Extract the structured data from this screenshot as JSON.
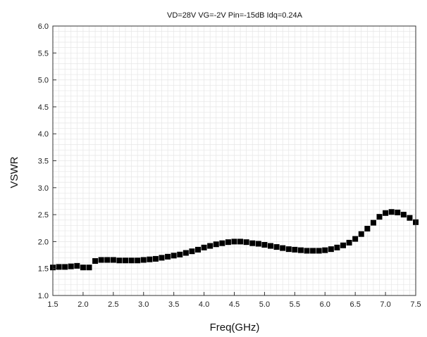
{
  "chart_data": {
    "type": "scatter",
    "title": "VD=28V  VG=-2V  Pin=-15dB  Idq=0.24A",
    "xlabel": "Freq(GHz)",
    "ylabel": "VSWR",
    "xlim": [
      1.5,
      7.5
    ],
    "ylim": [
      1.0,
      6.0
    ],
    "xticks": [
      "1.5",
      "2.0",
      "2.5",
      "3.0",
      "3.5",
      "4.0",
      "4.5",
      "5.0",
      "5.5",
      "6.0",
      "6.5",
      "7.0",
      "7.5"
    ],
    "yticks": [
      "1.0",
      "1.5",
      "2.0",
      "2.5",
      "3.0",
      "3.5",
      "4.0",
      "4.5",
      "5.0",
      "5.5",
      "6.0"
    ],
    "grid": true,
    "marker_color": "#000000",
    "series": [
      {
        "x": [
          1.5,
          1.6,
          1.7,
          1.8,
          1.9,
          2.0,
          2.1,
          2.2,
          2.3,
          2.4,
          2.5,
          2.6,
          2.7,
          2.8,
          2.9,
          3.0,
          3.1,
          3.2,
          3.3,
          3.4,
          3.5,
          3.6,
          3.7,
          3.8,
          3.9,
          4.0,
          4.1,
          4.2,
          4.3,
          4.4,
          4.5,
          4.6,
          4.7,
          4.8,
          4.9,
          5.0,
          5.1,
          5.2,
          5.3,
          5.4,
          5.5,
          5.6,
          5.7,
          5.8,
          5.9,
          6.0,
          6.1,
          6.2,
          6.3,
          6.4,
          6.5,
          6.6,
          6.7,
          6.8,
          6.9,
          7.0,
          7.1,
          7.2,
          7.3,
          7.4,
          7.5
        ],
        "y": [
          1.52,
          1.53,
          1.53,
          1.54,
          1.55,
          1.52,
          1.52,
          1.64,
          1.66,
          1.66,
          1.66,
          1.65,
          1.65,
          1.65,
          1.65,
          1.66,
          1.67,
          1.68,
          1.7,
          1.72,
          1.74,
          1.76,
          1.79,
          1.82,
          1.85,
          1.89,
          1.92,
          1.95,
          1.97,
          1.99,
          2.0,
          2.0,
          1.99,
          1.97,
          1.96,
          1.94,
          1.92,
          1.9,
          1.88,
          1.86,
          1.85,
          1.84,
          1.83,
          1.83,
          1.83,
          1.84,
          1.86,
          1.89,
          1.93,
          1.98,
          2.05,
          2.14,
          2.24,
          2.35,
          2.46,
          2.53,
          2.55,
          2.54,
          2.5,
          2.44,
          2.36
        ]
      }
    ]
  }
}
